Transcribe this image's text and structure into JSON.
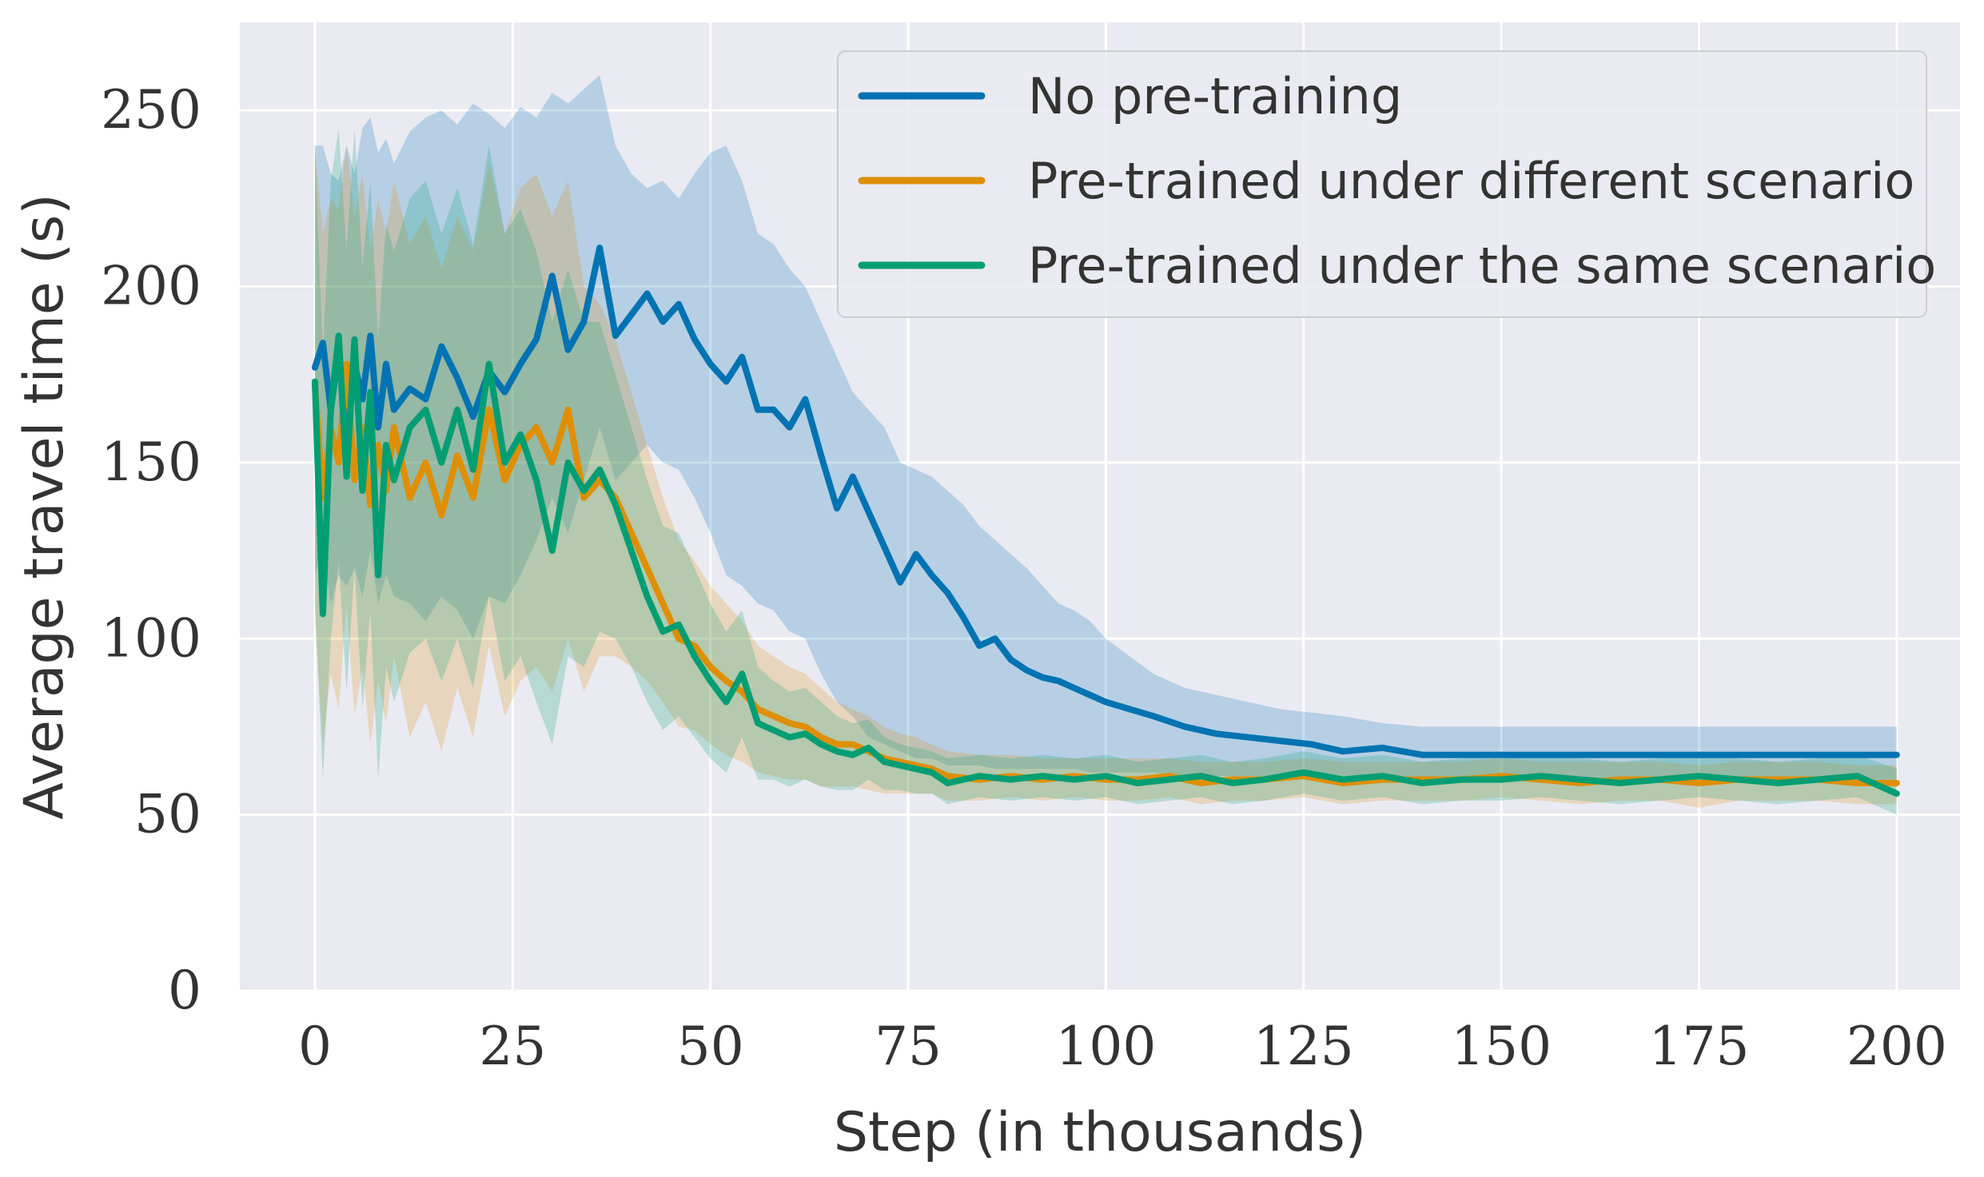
{
  "chart_data": {
    "type": "line",
    "title": "",
    "xlabel": "Step (in thousands)",
    "ylabel": "Average travel time (s)",
    "xlim": [
      -9.5,
      208
    ],
    "ylim": [
      0,
      275
    ],
    "xticks": [
      0,
      25,
      50,
      75,
      100,
      125,
      150,
      175,
      200
    ],
    "yticks": [
      0,
      50,
      100,
      150,
      200,
      250
    ],
    "xtick_labels": [
      "0",
      "25",
      "50",
      "75",
      "100",
      "125",
      "150",
      "175",
      "200"
    ],
    "ytick_labels": [
      "0",
      "50",
      "100",
      "150",
      "200",
      "250"
    ],
    "grid": true,
    "legend_position": "top-right",
    "series": [
      {
        "name": "No pre-training",
        "color": "#0173b2",
        "x": [
          0,
          1,
          2,
          3,
          4,
          5,
          6,
          7,
          8,
          9,
          10,
          12,
          14,
          16,
          18,
          20,
          22,
          24,
          26,
          28,
          30,
          32,
          34,
          36,
          38,
          40,
          42,
          44,
          46,
          48,
          50,
          52,
          54,
          56,
          58,
          60,
          62,
          64,
          66,
          68,
          70,
          72,
          74,
          76,
          78,
          80,
          82,
          84,
          86,
          88,
          90,
          92,
          94,
          96,
          98,
          100,
          103,
          106,
          110,
          114,
          118,
          122,
          126,
          130,
          135,
          140,
          145,
          150,
          155,
          160,
          170,
          180,
          190,
          200
        ],
        "values": [
          177,
          184,
          165,
          182,
          163,
          178,
          168,
          186,
          160,
          178,
          165,
          171,
          168,
          183,
          174,
          163,
          176,
          170,
          178,
          185,
          203,
          182,
          190,
          211,
          186,
          192,
          198,
          190,
          195,
          185,
          178,
          173,
          180,
          165,
          165,
          160,
          168,
          152,
          137,
          146,
          136,
          126,
          116,
          124,
          118,
          113,
          106,
          98,
          100,
          94,
          91,
          89,
          88,
          86,
          84,
          82,
          80,
          78,
          75,
          73,
          72,
          71,
          70,
          68,
          69,
          67,
          67,
          67,
          67,
          67,
          67,
          67,
          67,
          67
        ],
        "upper": [
          240,
          240,
          232,
          230,
          240,
          232,
          245,
          248,
          238,
          242,
          235,
          244,
          248,
          250,
          246,
          252,
          249,
          245,
          251,
          248,
          255,
          252,
          256,
          260,
          240,
          232,
          228,
          230,
          225,
          232,
          238,
          240,
          230,
          215,
          212,
          205,
          200,
          190,
          180,
          170,
          165,
          160,
          150,
          148,
          146,
          142,
          138,
          132,
          128,
          124,
          120,
          115,
          110,
          108,
          105,
          100,
          95,
          90,
          86,
          84,
          82,
          80,
          79,
          78,
          76,
          75,
          75,
          75,
          75,
          75,
          75,
          75,
          75,
          75
        ],
        "lower": [
          118,
          125,
          110,
          118,
          115,
          120,
          112,
          125,
          110,
          118,
          112,
          110,
          105,
          112,
          108,
          100,
          112,
          110,
          118,
          128,
          140,
          130,
          145,
          160,
          145,
          150,
          155,
          150,
          148,
          140,
          130,
          118,
          115,
          110,
          108,
          102,
          100,
          90,
          82,
          78,
          72,
          70,
          68,
          66,
          66,
          64,
          64,
          64,
          63,
          63,
          63,
          63,
          63,
          63,
          62,
          62,
          62,
          62,
          61,
          61,
          61,
          61,
          61,
          61,
          60,
          60,
          60,
          60,
          60,
          60,
          60,
          60,
          60,
          60
        ]
      },
      {
        "name": "Pre-trained under different scenario",
        "color": "#de8f05",
        "x": [
          0,
          1,
          2,
          3,
          4,
          5,
          6,
          7,
          8,
          9,
          10,
          12,
          14,
          16,
          18,
          20,
          22,
          24,
          26,
          28,
          30,
          32,
          34,
          36,
          38,
          40,
          42,
          44,
          46,
          48,
          50,
          52,
          54,
          56,
          58,
          60,
          62,
          64,
          66,
          68,
          70,
          72,
          74,
          76,
          78,
          80,
          84,
          88,
          92,
          96,
          100,
          104,
          108,
          112,
          116,
          120,
          125,
          130,
          135,
          140,
          145,
          150,
          155,
          160,
          165,
          170,
          175,
          180,
          185,
          190,
          195,
          200
        ],
        "values": [
          172,
          140,
          160,
          150,
          178,
          145,
          160,
          138,
          155,
          142,
          160,
          140,
          150,
          135,
          152,
          140,
          165,
          145,
          155,
          160,
          150,
          165,
          140,
          145,
          140,
          130,
          120,
          110,
          100,
          98,
          92,
          88,
          85,
          80,
          78,
          76,
          75,
          72,
          70,
          70,
          68,
          66,
          65,
          64,
          63,
          61,
          60,
          61,
          60,
          61,
          60,
          60,
          61,
          59,
          60,
          60,
          61,
          59,
          60,
          60,
          60,
          61,
          60,
          59,
          60,
          60,
          59,
          60,
          60,
          60,
          59,
          59
        ],
        "upper": [
          240,
          215,
          225,
          222,
          240,
          220,
          232,
          210,
          225,
          215,
          230,
          212,
          220,
          205,
          220,
          210,
          235,
          215,
          228,
          232,
          220,
          230,
          200,
          195,
          185,
          170,
          155,
          140,
          128,
          122,
          115,
          110,
          105,
          98,
          95,
          92,
          90,
          86,
          82,
          80,
          78,
          75,
          73,
          72,
          70,
          68,
          67,
          67,
          66,
          66,
          66,
          66,
          66,
          65,
          65,
          65,
          66,
          65,
          65,
          65,
          65,
          66,
          65,
          65,
          65,
          65,
          64,
          65,
          65,
          65,
          64,
          64
        ],
        "lower": [
          105,
          70,
          90,
          80,
          110,
          78,
          92,
          70,
          88,
          76,
          95,
          72,
          82,
          68,
          86,
          72,
          98,
          78,
          88,
          92,
          85,
          100,
          85,
          95,
          95,
          92,
          88,
          82,
          75,
          74,
          70,
          67,
          65,
          62,
          61,
          60,
          60,
          58,
          58,
          58,
          57,
          56,
          56,
          56,
          56,
          54,
          54,
          55,
          54,
          55,
          54,
          54,
          55,
          53,
          54,
          54,
          55,
          53,
          54,
          54,
          54,
          55,
          54,
          53,
          54,
          54,
          52,
          54,
          54,
          54,
          53,
          53
        ]
      },
      {
        "name": "Pre-trained under the same scenario",
        "color": "#029e73",
        "x": [
          0,
          1,
          2,
          3,
          4,
          5,
          6,
          7,
          8,
          9,
          10,
          12,
          14,
          16,
          18,
          20,
          22,
          24,
          26,
          28,
          30,
          32,
          34,
          36,
          38,
          40,
          42,
          44,
          46,
          48,
          50,
          52,
          54,
          56,
          58,
          60,
          62,
          64,
          66,
          68,
          70,
          72,
          74,
          76,
          78,
          80,
          84,
          88,
          92,
          96,
          100,
          104,
          108,
          112,
          116,
          120,
          125,
          130,
          135,
          140,
          145,
          150,
          155,
          160,
          165,
          170,
          175,
          180,
          185,
          190,
          195,
          200
        ],
        "values": [
          173,
          107,
          165,
          186,
          146,
          185,
          142,
          170,
          118,
          155,
          145,
          160,
          165,
          150,
          165,
          148,
          178,
          150,
          158,
          145,
          125,
          150,
          142,
          148,
          138,
          125,
          112,
          102,
          104,
          95,
          88,
          82,
          90,
          76,
          74,
          72,
          73,
          70,
          68,
          67,
          69,
          65,
          64,
          63,
          62,
          59,
          61,
          60,
          61,
          60,
          61,
          59,
          60,
          61,
          59,
          60,
          62,
          60,
          61,
          59,
          60,
          60,
          61,
          60,
          59,
          60,
          61,
          60,
          59,
          60,
          61,
          56
        ],
        "upper": [
          240,
          180,
          230,
          245,
          210,
          245,
          205,
          230,
          185,
          218,
          210,
          225,
          230,
          215,
          228,
          212,
          240,
          215,
          222,
          210,
          190,
          205,
          190,
          190,
          175,
          160,
          145,
          132,
          130,
          120,
          110,
          102,
          108,
          92,
          88,
          85,
          86,
          82,
          78,
          76,
          77,
          72,
          70,
          69,
          68,
          66,
          67,
          66,
          67,
          66,
          67,
          65,
          66,
          67,
          65,
          66,
          68,
          66,
          67,
          65,
          66,
          66,
          67,
          66,
          65,
          66,
          67,
          66,
          65,
          66,
          67,
          63
        ],
        "lower": [
          110,
          60,
          100,
          122,
          85,
          120,
          80,
          108,
          60,
          92,
          82,
          96,
          100,
          88,
          100,
          86,
          112,
          88,
          95,
          82,
          70,
          95,
          92,
          102,
          100,
          92,
          82,
          74,
          78,
          72,
          66,
          62,
          72,
          60,
          60,
          58,
          60,
          58,
          57,
          57,
          60,
          57,
          57,
          56,
          56,
          53,
          55,
          54,
          55,
          54,
          55,
          53,
          54,
          55,
          53,
          54,
          56,
          54,
          55,
          53,
          54,
          54,
          55,
          54,
          53,
          54,
          55,
          54,
          53,
          54,
          55,
          50
        ]
      }
    ]
  }
}
